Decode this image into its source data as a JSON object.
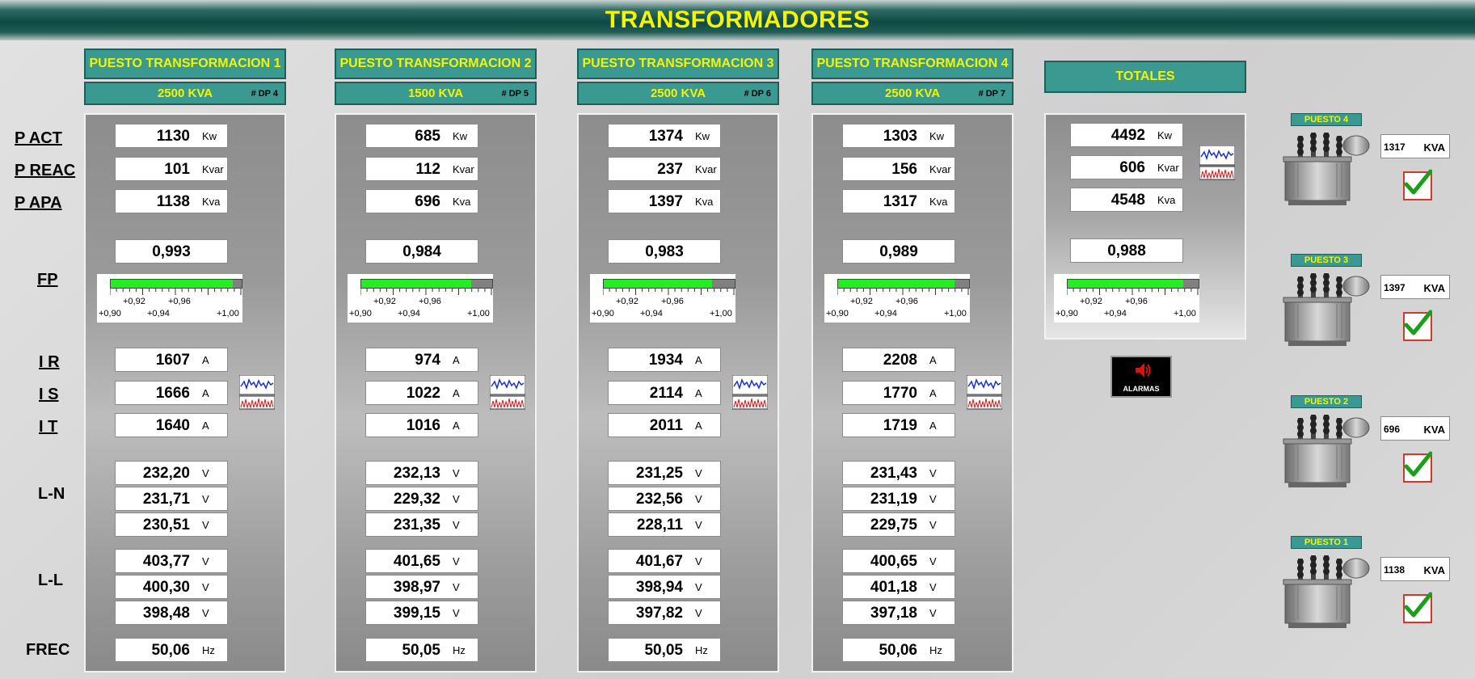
{
  "title": "TRANSFORMADORES",
  "row_labels": {
    "p_act": "P ACT",
    "p_reac": "P REAC",
    "p_apa": "P APA",
    "fp": "FP",
    "ir": "I R",
    "is": "I S",
    "it": "I T",
    "ln": "L-N",
    "ll": "L-L",
    "frec": "FREC"
  },
  "units": {
    "kw": "Kw",
    "kvar": "Kvar",
    "kva": "Kva",
    "a": "A",
    "v": "V",
    "hz": "Hz",
    "kva_upper": "KVA"
  },
  "gauge_labels": {
    "t092": "+0,92",
    "t096": "+0,96",
    "t090": "+0,90",
    "t094": "+0,94",
    "t100": "+1,00"
  },
  "columns": [
    {
      "name": "PUESTO TRANSFORMACION 1",
      "rating": "2500 KVA",
      "dp": "# DP 4",
      "p_act": "1130",
      "p_reac": "101",
      "p_apa": "1138",
      "fp": "0,993",
      "fp_value": 0.993,
      "ir": "1607",
      "is": "1666",
      "it": "1640",
      "ln": [
        "232,20",
        "231,71",
        "230,51"
      ],
      "ll": [
        "403,77",
        "400,30",
        "398,48"
      ],
      "frec": "50,06"
    },
    {
      "name": "PUESTO TRANSFORMACION 2",
      "rating": "1500 KVA",
      "dp": "# DP 5",
      "p_act": "685",
      "p_reac": "112",
      "p_apa": "696",
      "fp": "0,984",
      "fp_value": 0.984,
      "ir": "974",
      "is": "1022",
      "it": "1016",
      "ln": [
        "232,13",
        "229,32",
        "231,35"
      ],
      "ll": [
        "401,65",
        "398,97",
        "399,15"
      ],
      "frec": "50,05"
    },
    {
      "name": "PUESTO TRANSFORMACION 3",
      "rating": "2500 KVA",
      "dp": "# DP 6",
      "p_act": "1374",
      "p_reac": "237",
      "p_apa": "1397",
      "fp": "0,983",
      "fp_value": 0.983,
      "ir": "1934",
      "is": "2114",
      "it": "2011",
      "ln": [
        "231,25",
        "232,56",
        "228,11"
      ],
      "ll": [
        "401,67",
        "398,94",
        "397,82"
      ],
      "frec": "50,05"
    },
    {
      "name": "PUESTO TRANSFORMACION 4",
      "rating": "2500 KVA",
      "dp": "# DP 7",
      "p_act": "1303",
      "p_reac": "156",
      "p_apa": "1317",
      "fp": "0,989",
      "fp_value": 0.989,
      "ir": "2208",
      "is": "1770",
      "it": "1719",
      "ln": [
        "231,43",
        "231,19",
        "229,75"
      ],
      "ll": [
        "400,65",
        "401,18",
        "397,18"
      ],
      "frec": "50,06"
    }
  ],
  "totals": {
    "header": "TOTALES",
    "p_act": "4492",
    "p_reac": "606",
    "p_apa": "4548",
    "fp": "0,988",
    "fp_value": 0.988
  },
  "alarm_label": "ALARMAS",
  "puestos": [
    {
      "tag": "PUESTO 4",
      "kva": "1317"
    },
    {
      "tag": "PUESTO 3",
      "kva": "1397"
    },
    {
      "tag": "PUESTO 2",
      "kva": "696"
    },
    {
      "tag": "PUESTO 1",
      "kva": "1138"
    }
  ],
  "colors": {
    "header_bg": "#3a9a92",
    "header_text": "#f5f500",
    "gauge_fill": "#22ee22",
    "check": "#18a018",
    "check_border": "#d03a2a"
  }
}
